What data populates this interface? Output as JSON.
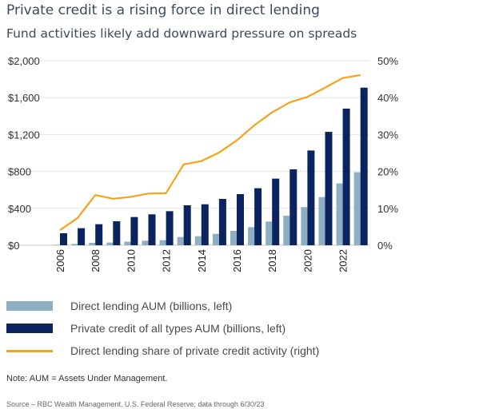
{
  "chart_data": {
    "type": "bar",
    "title": "Private credit is a rising force in direct lending",
    "subtitle": "Fund activities likely add downward pressure on spreads",
    "categories": [
      "2006",
      "2007",
      "2008",
      "2009",
      "2010",
      "2011",
      "2012",
      "2013",
      "2014",
      "2015",
      "2016",
      "2017",
      "2018",
      "2019",
      "2020",
      "2021",
      "2022",
      "2023"
    ],
    "x_tick_labels": [
      "2006",
      "2008",
      "2010",
      "2012",
      "2014",
      "2016",
      "2018",
      "2020",
      "2022"
    ],
    "left_axis": {
      "ylim": [
        0,
        2000
      ],
      "ticks": [
        "$0",
        "$400",
        "$800",
        "$1,200",
        "$1,600",
        "$2,000"
      ],
      "tick_values": [
        0,
        400,
        800,
        1200,
        1600,
        2000
      ]
    },
    "right_axis": {
      "ylim": [
        0,
        50
      ],
      "ticks": [
        "0%",
        "10%",
        "20%",
        "30%",
        "40%",
        "50%"
      ],
      "tick_values": [
        0,
        10,
        20,
        30,
        40,
        50
      ]
    },
    "grid": true,
    "series": [
      {
        "name": "Direct lending AUM (billions, left)",
        "type": "bar",
        "axis": "left",
        "color": "#8eafc2",
        "values": [
          5,
          14,
          26,
          29,
          38,
          49,
          55,
          89,
          98,
          124,
          156,
          196,
          257,
          320,
          413,
          522,
          670,
          791
        ]
      },
      {
        "name": "Private credit of all types AUM (billions, left)",
        "type": "bar",
        "axis": "left",
        "color": "#0b2460",
        "values": [
          130,
          185,
          228,
          260,
          306,
          335,
          369,
          433,
          444,
          502,
          554,
          618,
          722,
          823,
          1027,
          1229,
          1481,
          1708
        ]
      },
      {
        "name": "Direct lending share of private credit activity (right)",
        "type": "line",
        "axis": "right",
        "color": "#f5a31a",
        "values": [
          4.1,
          7.4,
          13.6,
          12.6,
          13.1,
          14.0,
          14.1,
          21.9,
          22.8,
          25.1,
          28.4,
          32.5,
          36.0,
          38.7,
          40.2,
          42.7,
          45.3,
          46.1
        ]
      }
    ],
    "legend_position": "bottom-left",
    "note": "Note: AUM = Assets Under Management.",
    "source": "Source – RBC Wealth Management, U.S. Federal Reserve; data through 6/30/23"
  }
}
